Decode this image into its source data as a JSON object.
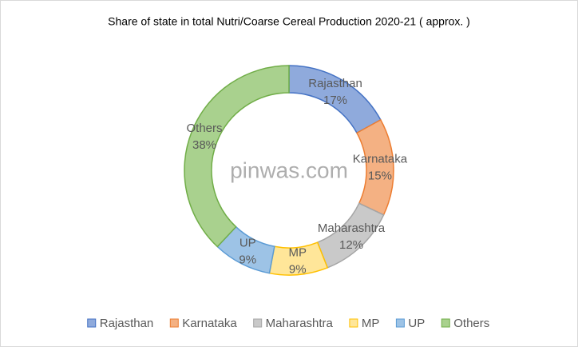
{
  "chart_data": {
    "type": "donut",
    "title": "Share of state in total Nutri/Coarse Cereal Production 2020-21 ( approx. )",
    "categories": [
      "Rajasthan",
      "Karnataka",
      "Maharashtra",
      "MP",
      "UP",
      "Others"
    ],
    "values": [
      17,
      15,
      12,
      9,
      9,
      38
    ],
    "value_labels": [
      "17%",
      "15%",
      "12%",
      "9%",
      "9%",
      "38%"
    ],
    "colors": [
      "#8faadc",
      "#f4b183",
      "#c9c9c9",
      "#ffe699",
      "#9dc3e6",
      "#a9d18e"
    ],
    "edge_colors": [
      "#4472c4",
      "#ed7d31",
      "#a5a5a5",
      "#ffc000",
      "#5b9bd5",
      "#70ad47"
    ],
    "legend": "bottom",
    "watermark": "pinwas.com"
  }
}
